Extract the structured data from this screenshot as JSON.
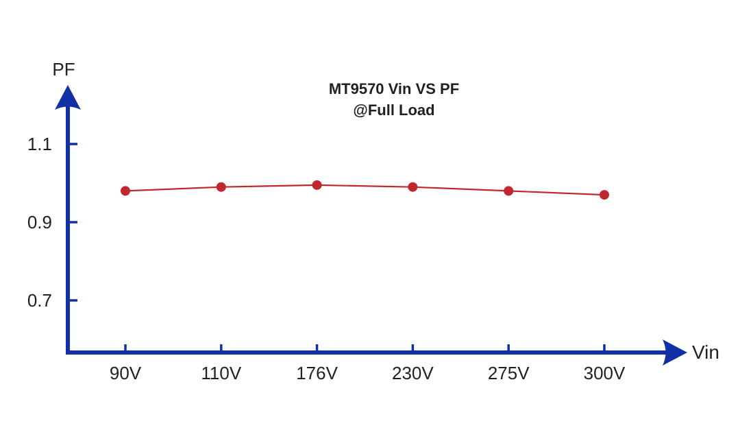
{
  "chart_data": {
    "type": "line",
    "title": "MT9570 Vin VS PF",
    "subtitle": "@Full Load",
    "xlabel": "Vin",
    "ylabel": "PF",
    "categories": [
      "90V",
      "110V",
      "176V",
      "230V",
      "275V",
      "300V"
    ],
    "values": [
      0.98,
      0.99,
      0.995,
      0.99,
      0.98,
      0.97
    ],
    "ytick_labels": [
      "1.1",
      "0.9",
      "0.7"
    ],
    "ytick_values": [
      1.1,
      0.9,
      0.7
    ],
    "ylim": [
      0.6,
      1.2
    ],
    "grid": "off",
    "legend": "none",
    "series_name": "PF at Full Load",
    "marker": "circle",
    "colors": {
      "axis": "#1230A5",
      "series": "#C1272D",
      "text": "#231F20"
    }
  }
}
